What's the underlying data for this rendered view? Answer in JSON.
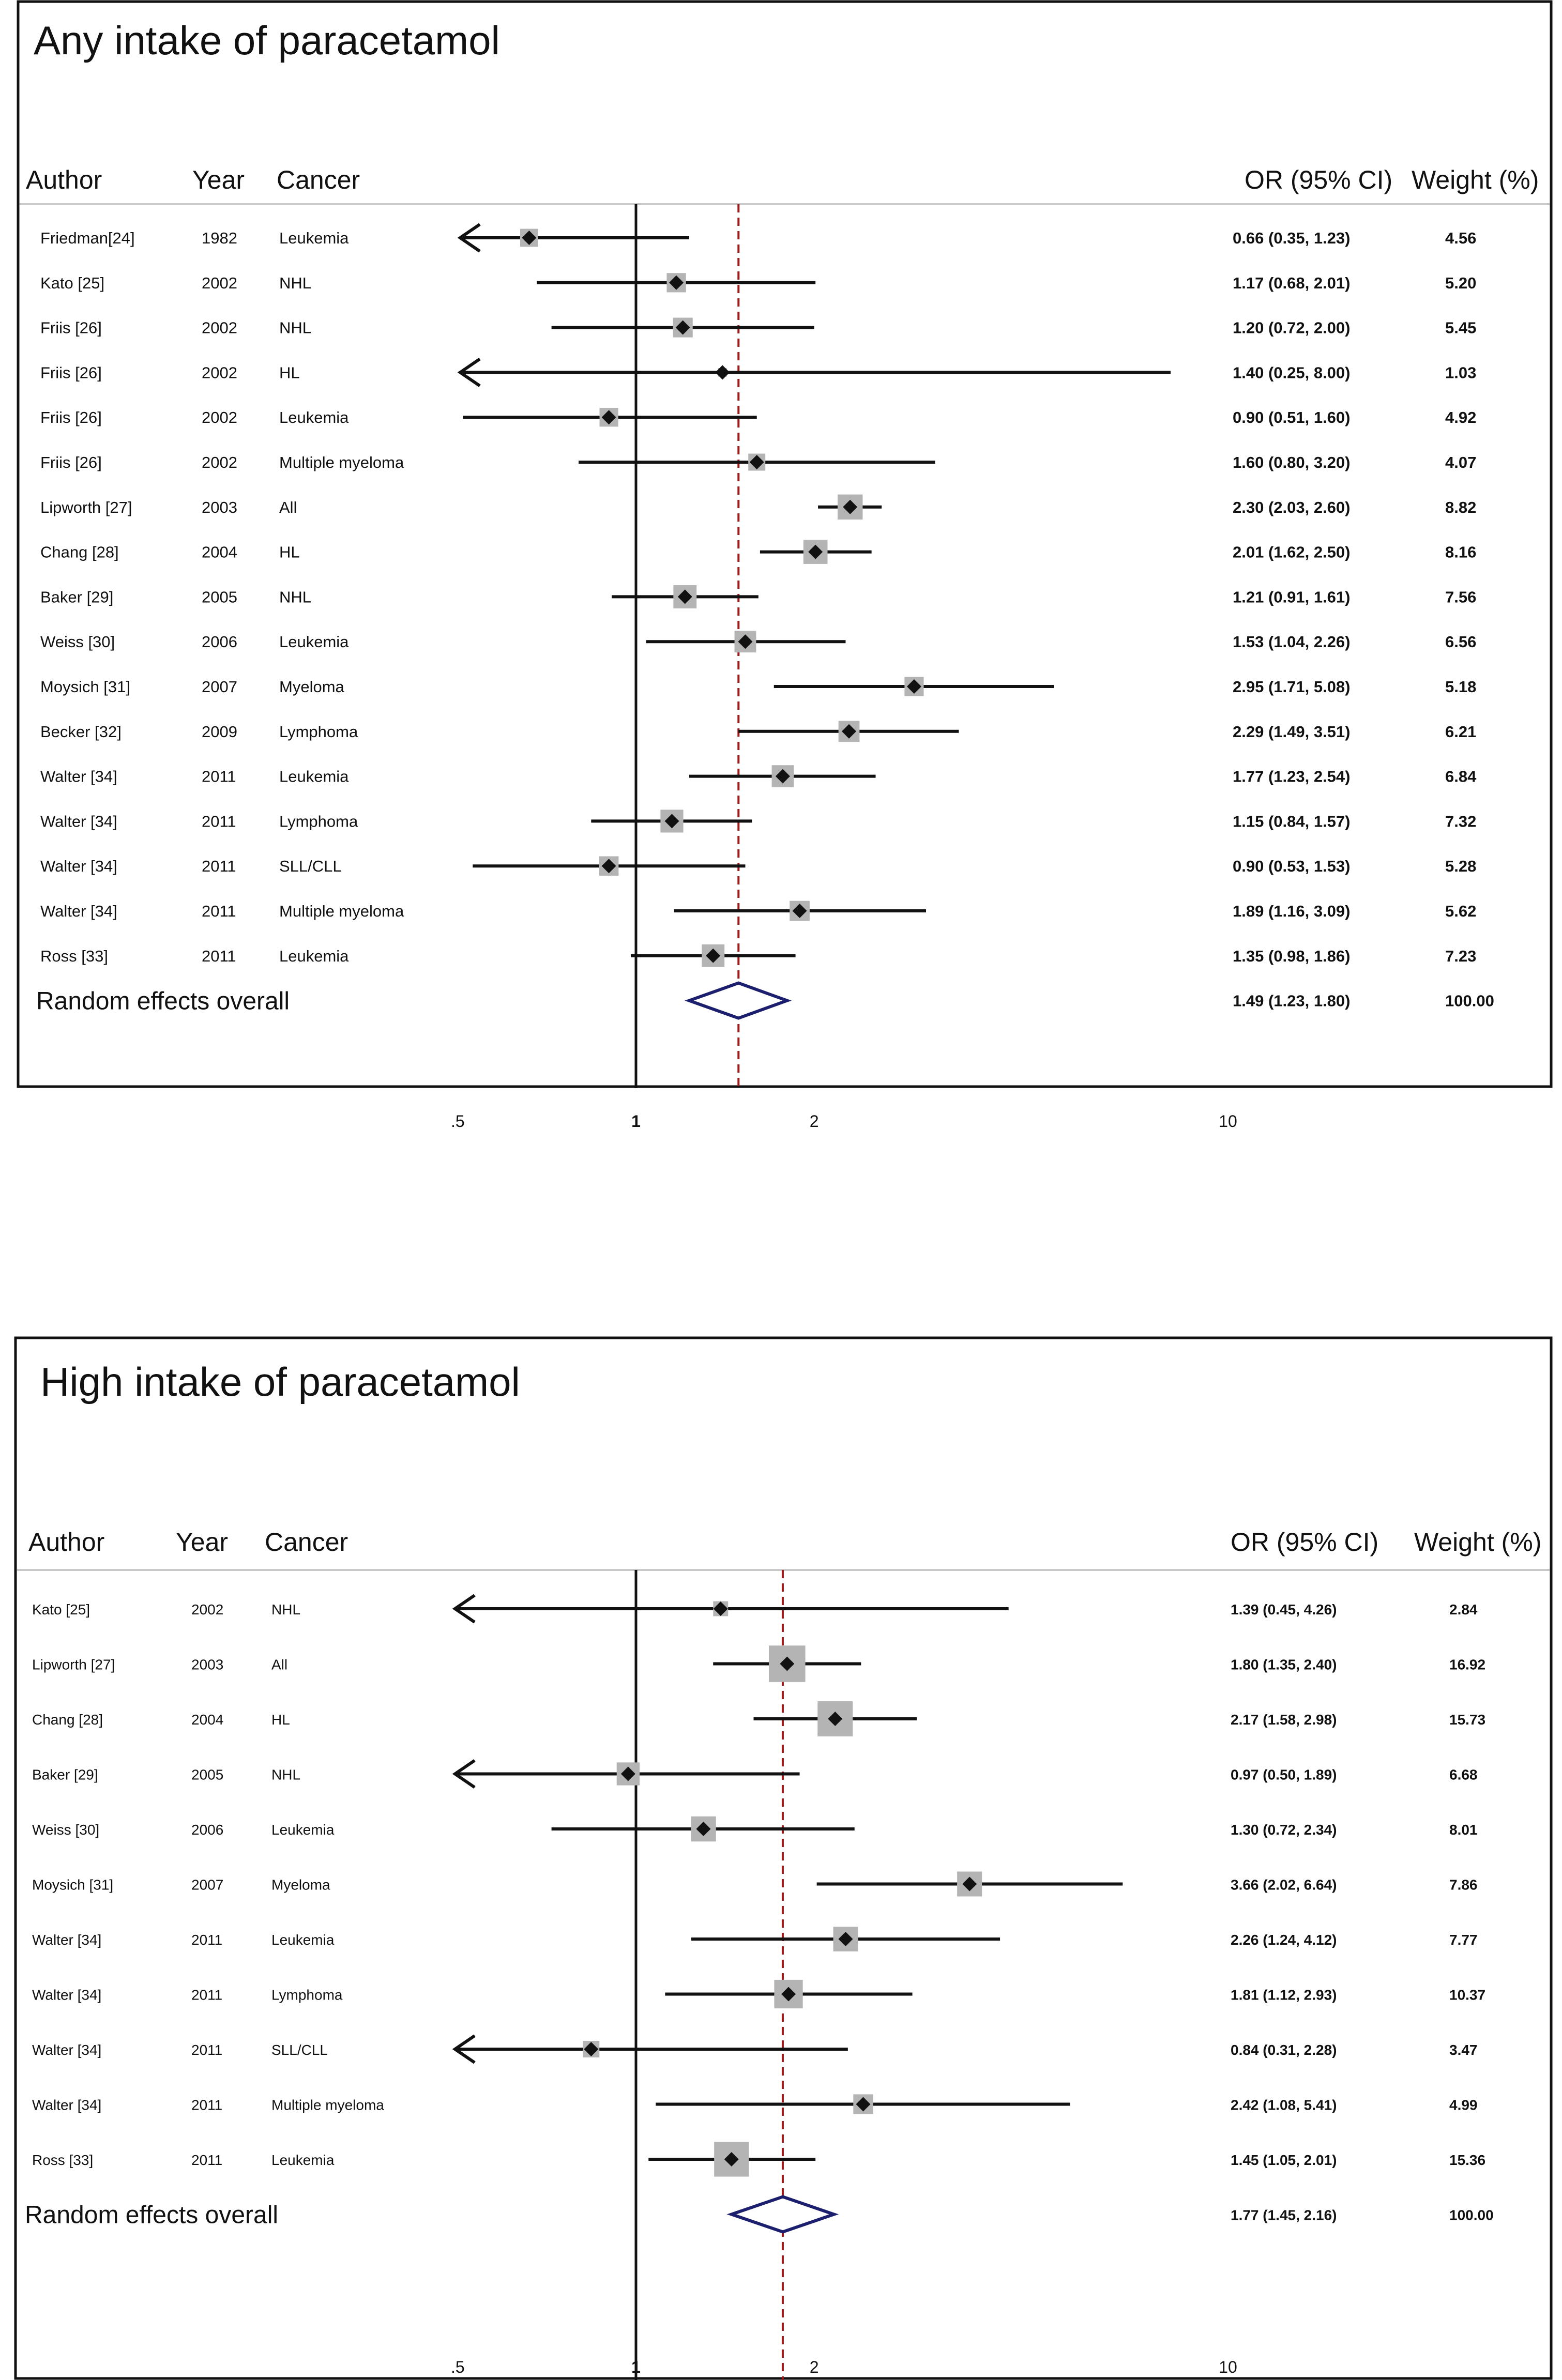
{
  "colors": {
    "line": "#111111",
    "box": "#b4b4b4",
    "reference": "#9b1c1c",
    "diamond": "#1b1f6e",
    "separator": "#c8c8c8"
  },
  "columns": {
    "author": "Author",
    "year": "Year",
    "cancer": "Cancer",
    "or_ci": "OR (95% CI)",
    "weight": "Weight (%)"
  },
  "chart_data": [
    {
      "type": "forest",
      "title": "Any intake of paracetamol",
      "scale": "log",
      "xlim": [
        0.4,
        18
      ],
      "xticks": [
        {
          "value": 0.5,
          "label": ".5"
        },
        {
          "value": 1,
          "label": "1"
        },
        {
          "value": 2,
          "label": "2"
        },
        {
          "value": 10,
          "label": "10"
        }
      ],
      "null_line": 1,
      "studies": [
        {
          "author": "Friedman[24]",
          "year": "1982",
          "cancer": "Leukemia",
          "or": 0.66,
          "lower": 0.35,
          "upper": 1.23,
          "or_text": "0.66 (0.35, 1.23)",
          "weight": 4.56,
          "weight_text": "4.56",
          "arrow_left": true,
          "arrow_right": false
        },
        {
          "author": "Kato [25]",
          "year": "2002",
          "cancer": "NHL",
          "or": 1.17,
          "lower": 0.68,
          "upper": 2.01,
          "or_text": "1.17 (0.68, 2.01)",
          "weight": 5.2,
          "weight_text": "5.20",
          "arrow_left": false,
          "arrow_right": false
        },
        {
          "author": "Friis [26]",
          "year": "2002",
          "cancer": "NHL",
          "or": 1.2,
          "lower": 0.72,
          "upper": 2.0,
          "or_text": "1.20 (0.72, 2.00)",
          "weight": 5.45,
          "weight_text": "5.45",
          "arrow_left": false,
          "arrow_right": false
        },
        {
          "author": "Friis [26]",
          "year": "2002",
          "cancer": "HL",
          "or": 1.4,
          "lower": 0.25,
          "upper": 8.0,
          "or_text": "1.40 (0.25, 8.00)",
          "weight": 1.03,
          "weight_text": "1.03",
          "arrow_left": true,
          "arrow_right": false
        },
        {
          "author": "Friis [26]",
          "year": "2002",
          "cancer": "Leukemia",
          "or": 0.9,
          "lower": 0.51,
          "upper": 1.6,
          "or_text": "0.90 (0.51, 1.60)",
          "weight": 4.92,
          "weight_text": "4.92",
          "arrow_left": false,
          "arrow_right": false
        },
        {
          "author": "Friis [26]",
          "year": "2002",
          "cancer": "Multiple myeloma",
          "or": 1.6,
          "lower": 0.8,
          "upper": 3.2,
          "or_text": "1.60 (0.80, 3.20)",
          "weight": 4.07,
          "weight_text": "4.07",
          "arrow_left": false,
          "arrow_right": false
        },
        {
          "author": "Lipworth [27]",
          "year": "2003",
          "cancer": "All",
          "or": 2.3,
          "lower": 2.03,
          "upper": 2.6,
          "or_text": "2.30 (2.03, 2.60)",
          "weight": 8.82,
          "weight_text": "8.82",
          "arrow_left": false,
          "arrow_right": false
        },
        {
          "author": "Chang [28]",
          "year": "2004",
          "cancer": "HL",
          "or": 2.01,
          "lower": 1.62,
          "upper": 2.5,
          "or_text": "2.01 (1.62, 2.50)",
          "weight": 8.16,
          "weight_text": "8.16",
          "arrow_left": false,
          "arrow_right": false
        },
        {
          "author": "Baker [29]",
          "year": "2005",
          "cancer": "NHL",
          "or": 1.21,
          "lower": 0.91,
          "upper": 1.61,
          "or_text": "1.21 (0.91, 1.61)",
          "weight": 7.56,
          "weight_text": "7.56",
          "arrow_left": false,
          "arrow_right": false
        },
        {
          "author": "Weiss [30]",
          "year": "2006",
          "cancer": "Leukemia",
          "or": 1.53,
          "lower": 1.04,
          "upper": 2.26,
          "or_text": "1.53 (1.04, 2.26)",
          "weight": 6.56,
          "weight_text": "6.56",
          "arrow_left": false,
          "arrow_right": false
        },
        {
          "author": "Moysich [31]",
          "year": "2007",
          "cancer": "Myeloma",
          "or": 2.95,
          "lower": 1.71,
          "upper": 5.08,
          "or_text": "2.95 (1.71, 5.08)",
          "weight": 5.18,
          "weight_text": "5.18",
          "arrow_left": false,
          "arrow_right": false
        },
        {
          "author": "Becker [32]",
          "year": "2009",
          "cancer": "Lymphoma",
          "or": 2.29,
          "lower": 1.49,
          "upper": 3.51,
          "or_text": "2.29 (1.49, 3.51)",
          "weight": 6.21,
          "weight_text": "6.21",
          "arrow_left": false,
          "arrow_right": false
        },
        {
          "author": "Walter [34]",
          "year": "2011",
          "cancer": "Leukemia",
          "or": 1.77,
          "lower": 1.23,
          "upper": 2.54,
          "or_text": "1.77 (1.23, 2.54)",
          "weight": 6.84,
          "weight_text": "6.84",
          "arrow_left": false,
          "arrow_right": false
        },
        {
          "author": "Walter [34]",
          "year": "2011",
          "cancer": "Lymphoma",
          "or": 1.15,
          "lower": 0.84,
          "upper": 1.57,
          "or_text": "1.15 (0.84, 1.57)",
          "weight": 7.32,
          "weight_text": "7.32",
          "arrow_left": false,
          "arrow_right": false
        },
        {
          "author": "Walter [34]",
          "year": "2011",
          "cancer": "SLL/CLL",
          "or": 0.9,
          "lower": 0.53,
          "upper": 1.53,
          "or_text": "0.90 (0.53, 1.53)",
          "weight": 5.28,
          "weight_text": "5.28",
          "arrow_left": false,
          "arrow_right": false
        },
        {
          "author": "Walter [34]",
          "year": "2011",
          "cancer": "Multiple myeloma",
          "or": 1.89,
          "lower": 1.16,
          "upper": 3.09,
          "or_text": "1.89 (1.16, 3.09)",
          "weight": 5.62,
          "weight_text": "5.62",
          "arrow_left": false,
          "arrow_right": false
        },
        {
          "author": "Ross [33]",
          "year": "2011",
          "cancer": "Leukemia",
          "or": 1.35,
          "lower": 0.98,
          "upper": 1.86,
          "or_text": "1.35 (0.98, 1.86)",
          "weight": 7.23,
          "weight_text": "7.23",
          "arrow_left": false,
          "arrow_right": false
        }
      ],
      "overall": {
        "label": "Random effects overall",
        "or": 1.49,
        "lower": 1.23,
        "upper": 1.8,
        "or_text": "1.49 (1.23, 1.80)",
        "weight_text": "100.00"
      }
    },
    {
      "type": "forest",
      "title": "High intake of paracetamol",
      "scale": "log",
      "xlim": [
        0.4,
        18
      ],
      "xticks": [
        {
          "value": 0.5,
          "label": ".5"
        },
        {
          "value": 1,
          "label": "1"
        },
        {
          "value": 2,
          "label": "2"
        },
        {
          "value": 10,
          "label": "10"
        }
      ],
      "null_line": 1,
      "studies": [
        {
          "author": "Kato [25]",
          "year": "2002",
          "cancer": "NHL",
          "or": 1.39,
          "lower": 0.45,
          "upper": 4.26,
          "or_text": "1.39 (0.45, 4.26)",
          "weight": 2.84,
          "weight_text": "2.84",
          "arrow_left": true,
          "arrow_right": false
        },
        {
          "author": "Lipworth [27]",
          "year": "2003",
          "cancer": "All",
          "or": 1.8,
          "lower": 1.35,
          "upper": 2.4,
          "or_text": "1.80 (1.35, 2.40)",
          "weight": 16.92,
          "weight_text": "16.92",
          "arrow_left": false,
          "arrow_right": false
        },
        {
          "author": "Chang [28]",
          "year": "2004",
          "cancer": "HL",
          "or": 2.17,
          "lower": 1.58,
          "upper": 2.98,
          "or_text": "2.17 (1.58, 2.98)",
          "weight": 15.73,
          "weight_text": "15.73",
          "arrow_left": false,
          "arrow_right": false
        },
        {
          "author": "Baker [29]",
          "year": "2005",
          "cancer": "NHL",
          "or": 0.97,
          "lower": 0.5,
          "upper": 1.89,
          "or_text": "0.97 (0.50, 1.89)",
          "weight": 6.68,
          "weight_text": "6.68",
          "arrow_left": true,
          "arrow_right": false
        },
        {
          "author": "Weiss [30]",
          "year": "2006",
          "cancer": "Leukemia",
          "or": 1.3,
          "lower": 0.72,
          "upper": 2.34,
          "or_text": "1.30 (0.72, 2.34)",
          "weight": 8.01,
          "weight_text": "8.01",
          "arrow_left": false,
          "arrow_right": false
        },
        {
          "author": "Moysich [31]",
          "year": "2007",
          "cancer": "Myeloma",
          "or": 3.66,
          "lower": 2.02,
          "upper": 6.64,
          "or_text": "3.66 (2.02, 6.64)",
          "weight": 7.86,
          "weight_text": "7.86",
          "arrow_left": false,
          "arrow_right": false
        },
        {
          "author": "Walter [34]",
          "year": "2011",
          "cancer": "Leukemia",
          "or": 2.26,
          "lower": 1.24,
          "upper": 4.12,
          "or_text": "2.26 (1.24, 4.12)",
          "weight": 7.77,
          "weight_text": "7.77",
          "arrow_left": false,
          "arrow_right": false
        },
        {
          "author": "Walter [34]",
          "year": "2011",
          "cancer": "Lymphoma",
          "or": 1.81,
          "lower": 1.12,
          "upper": 2.93,
          "or_text": "1.81 (1.12, 2.93)",
          "weight": 10.37,
          "weight_text": "10.37",
          "arrow_left": false,
          "arrow_right": false
        },
        {
          "author": "Walter [34]",
          "year": "2011",
          "cancer": "SLL/CLL",
          "or": 0.84,
          "lower": 0.31,
          "upper": 2.28,
          "or_text": "0.84 (0.31, 2.28)",
          "weight": 3.47,
          "weight_text": "3.47",
          "arrow_left": true,
          "arrow_right": false
        },
        {
          "author": "Walter [34]",
          "year": "2011",
          "cancer": "Multiple myeloma",
          "or": 2.42,
          "lower": 1.08,
          "upper": 5.41,
          "or_text": "2.42 (1.08, 5.41)",
          "weight": 4.99,
          "weight_text": "4.99",
          "arrow_left": false,
          "arrow_right": false
        },
        {
          "author": "Ross [33]",
          "year": "2011",
          "cancer": "Leukemia",
          "or": 1.45,
          "lower": 1.05,
          "upper": 2.01,
          "or_text": "1.45 (1.05, 2.01)",
          "weight": 15.36,
          "weight_text": "15.36",
          "arrow_left": false,
          "arrow_right": false
        }
      ],
      "overall": {
        "label": "Random effects overall",
        "or": 1.77,
        "lower": 1.45,
        "upper": 2.16,
        "or_text": "1.77 (1.45, 2.16)",
        "weight_text": "100.00"
      }
    }
  ]
}
